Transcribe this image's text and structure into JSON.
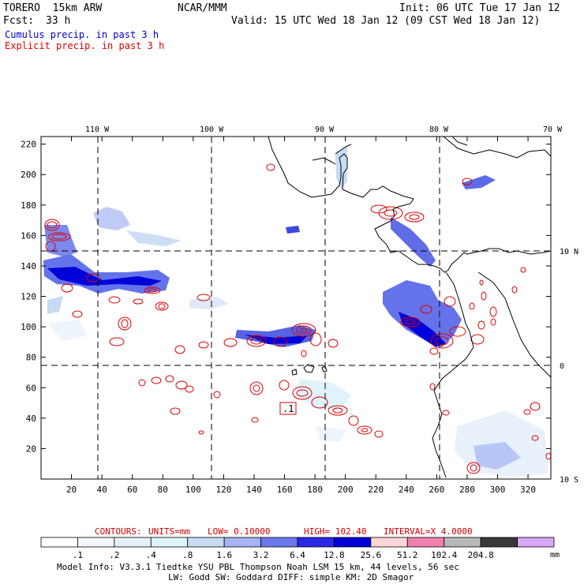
{
  "header": {
    "model": "TORERO  15km ARW",
    "org": "NCAR/MMM",
    "init": "Init: 06 UTC Tue 17 Jan 12",
    "fcst_label": "Fcst:",
    "fcst_value": "33 h",
    "valid": "Valid: 15 UTC Wed 18 Jan 12 (09 CST Wed 18 Jan 12)"
  },
  "legend": {
    "cumulus": "Cumulus precip. in past 3 h",
    "explicit": "Explicit precip. in past 3 h"
  },
  "colors": {
    "cumulus": "#0000cc",
    "explicit": "#dd0000",
    "coast": "#000000"
  },
  "chart_data": {
    "type": "heatmap",
    "x_grid_ticks": [
      "20",
      "40",
      "60",
      "80",
      "100",
      "120",
      "140",
      "160",
      "180",
      "200",
      "220",
      "240",
      "260",
      "280",
      "300",
      "320"
    ],
    "y_grid_ticks": [
      "20",
      "40",
      "60",
      "80",
      "100",
      "120",
      "140",
      "160",
      "180",
      "200",
      "220"
    ],
    "xlim": [
      0,
      335
    ],
    "ylim": [
      0,
      225
    ],
    "lon_labels": [
      "110 W",
      "100 W",
      "90 W",
      "80 W",
      "70 W"
    ],
    "lat_labels": [
      "10 N",
      "0",
      "10 S"
    ],
    "annotations": [
      ".1"
    ],
    "contour_info": {
      "label": "CONTOURS:",
      "units": "UNITS=mm",
      "low": "LOW= 0.10000",
      "high": "HIGH= 102.40",
      "interval": "INTERVAL=X  4.0000"
    },
    "colorbar": {
      "levels": [
        ".1",
        ".2",
        ".4",
        ".8",
        "1.6",
        "3.2",
        "6.4",
        "12.8",
        "25.6",
        "51.2",
        "102.4",
        "204.8"
      ],
      "unit": "mm",
      "colors": [
        "#ffffff",
        "#f2f6fc",
        "#e6effa",
        "#dff4fa",
        "#c6dcf4",
        "#a4b4f4",
        "#6a78ee",
        "#2828e6",
        "#0000d8",
        "#fcd6d6",
        "#f080b0",
        "#b8b8b8",
        "#383838",
        "#d8a8f8"
      ]
    },
    "footer_1": "Model Info: V3.3.1    Tiedtke YSU PBL  Thompson    Noah LSM  15 km,    44 levels,    56 sec",
    "footer_2": "LW: Godd SW: Goddard DIFF: simple KM: 2D Smagor"
  }
}
